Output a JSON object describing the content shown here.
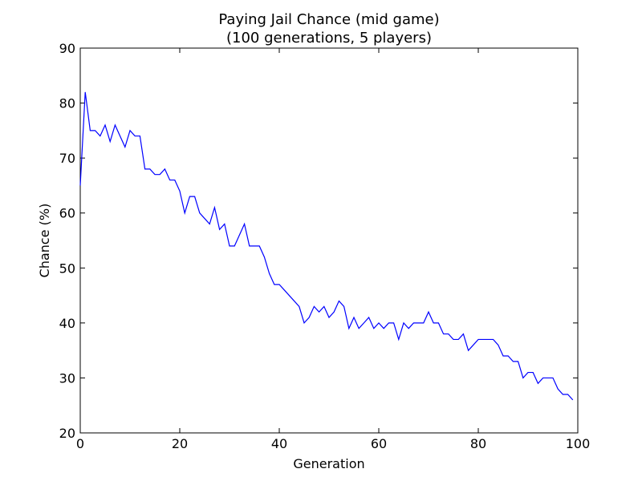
{
  "chart_data": {
    "type": "line",
    "title_line1": "Paying Jail Chance (mid game)",
    "title_line2": "(100 generations, 5 players)",
    "xlabel": "Generation",
    "ylabel": "Chance (%)",
    "xlim": [
      0,
      100
    ],
    "ylim": [
      20,
      90
    ],
    "xticks": [
      0,
      20,
      40,
      60,
      80,
      100
    ],
    "yticks": [
      20,
      30,
      40,
      50,
      60,
      70,
      80,
      90
    ],
    "xtick_labels": [
      "0",
      "20",
      "40",
      "60",
      "80",
      "100"
    ],
    "ytick_labels": [
      "20",
      "30",
      "40",
      "50",
      "60",
      "70",
      "80",
      "90"
    ],
    "grid": false,
    "line_color": "#0000ff",
    "series": [
      {
        "x": [
          0,
          1,
          2,
          3,
          4,
          5,
          6,
          7,
          8,
          9,
          10,
          11,
          12,
          13,
          14,
          15,
          16,
          17,
          18,
          19,
          20,
          21,
          22,
          23,
          24,
          25,
          26,
          27,
          28,
          29,
          30,
          31,
          32,
          33,
          34,
          35,
          36,
          37,
          38,
          39,
          40,
          41,
          42,
          43,
          44,
          45,
          46,
          47,
          48,
          49,
          50,
          51,
          52,
          53,
          54,
          55,
          56,
          57,
          58,
          59,
          60,
          61,
          62,
          63,
          64,
          65,
          66,
          67,
          68,
          69,
          70,
          71,
          72,
          73,
          74,
          75,
          76,
          77,
          78,
          79,
          80,
          81,
          82,
          83,
          84,
          85,
          86,
          87,
          88,
          89,
          90,
          91,
          92,
          93,
          94,
          95,
          96,
          97,
          98,
          99
        ],
        "y": [
          65,
          82,
          75,
          75,
          74,
          76,
          73,
          76,
          74,
          72,
          75,
          74,
          74,
          68,
          68,
          67,
          67,
          68,
          66,
          66,
          64,
          60,
          63,
          63,
          60,
          59,
          58,
          61,
          57,
          58,
          54,
          54,
          56,
          58,
          54,
          54,
          54,
          52,
          49,
          47,
          47,
          46,
          45,
          44,
          43,
          40,
          41,
          43,
          42,
          43,
          41,
          42,
          44,
          43,
          39,
          41,
          39,
          40,
          41,
          39,
          40,
          39,
          40,
          40,
          37,
          40,
          39,
          40,
          40,
          40,
          42,
          40,
          40,
          38,
          38,
          37,
          37,
          38,
          35,
          36,
          37,
          37,
          37,
          37,
          36,
          34,
          34,
          33,
          33,
          30,
          31,
          31,
          29,
          30,
          30,
          30,
          28,
          27,
          27,
          26
        ]
      }
    ]
  }
}
